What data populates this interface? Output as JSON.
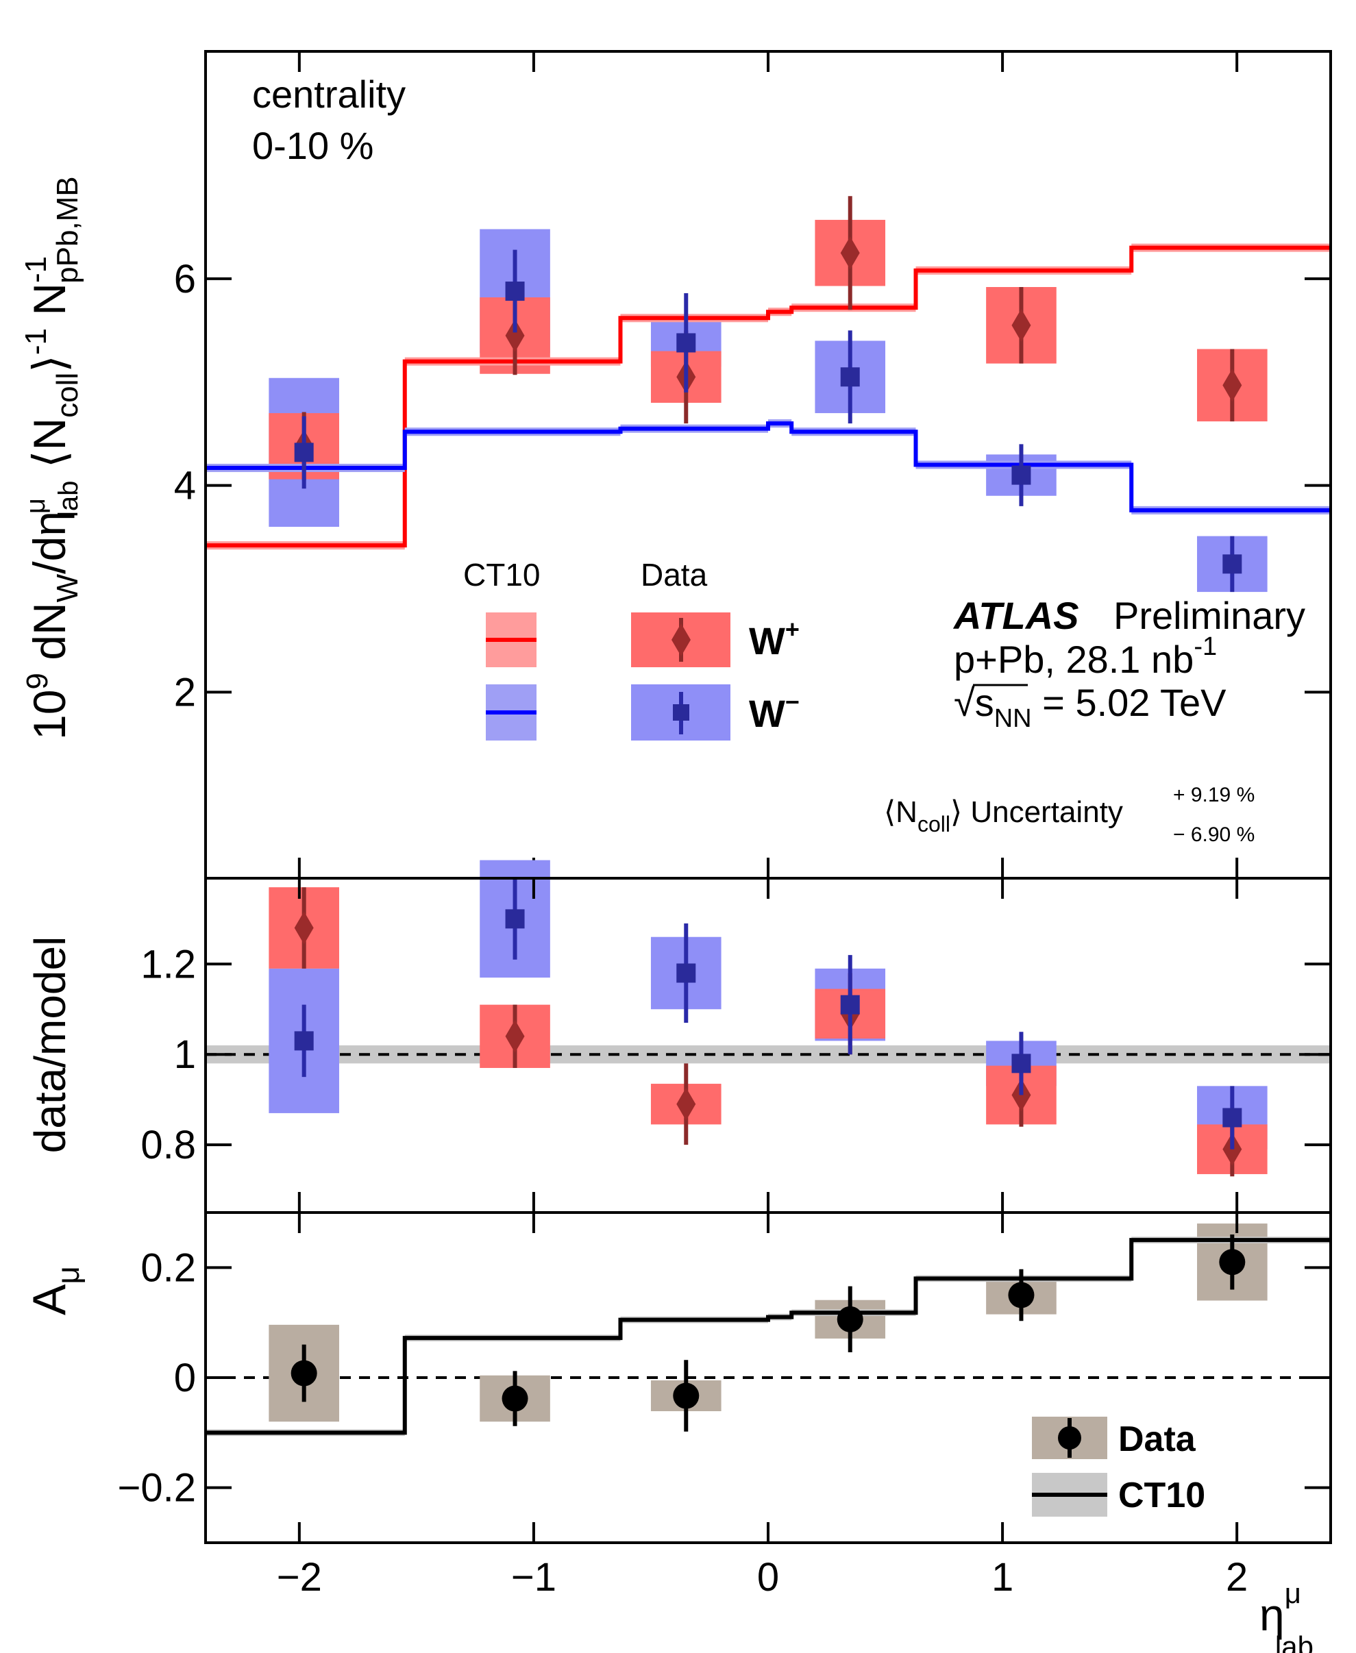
{
  "chart_data": [
    {
      "type": "scatter",
      "panel": "top",
      "ylabel_parts": {
        "lead": "10",
        "exp9": "9",
        "dN": " dN",
        "subW": "W",
        "slash": "/d",
        "eta": "η",
        "sup_mu": "μ",
        "sub_lab": "lab",
        "ncoll_open": " ⟨N",
        "sub_coll": "coll",
        "ncoll_close": "⟩",
        "sup_m1": "-1",
        "N": " N",
        "sup_m1b": "-1",
        "sub_ppbmb": "pPb,MB"
      },
      "yticks": [
        "2",
        "4",
        "6"
      ],
      "ytick_values": [
        2,
        4,
        6
      ],
      "ylim": [
        0.2,
        8.2
      ],
      "annotations": {
        "centrality": "centrality",
        "centrality_range": "0-10 %",
        "atlas": "ATLAS",
        "preliminary": "Preliminary",
        "system": "p+Pb, 28.1 nb",
        "system_sup": "-1",
        "energy_sqrt": "√",
        "energy_s": "s",
        "energy_sub": "NN",
        "energy_val": " = 5.02 TeV",
        "ncoll_unc_open": "⟨N",
        "ncoll_unc_sub": "coll",
        "ncoll_unc_close": "⟩ Uncertainty",
        "ncoll_unc_plus": "+ 9.19 %",
        "ncoll_unc_minus": "− 6.90 %"
      },
      "legend": {
        "ct10_header": "CT10",
        "data_header": "Data",
        "wplus": "W",
        "wplus_sup": "+",
        "wminus": "W",
        "wminus_sup": "−"
      },
      "model_bin_edges": [
        -2.4,
        -1.55,
        -0.63,
        0.0,
        0.1,
        0.63,
        1.55,
        2.4
      ],
      "series": [
        {
          "name": "W+",
          "color": "#ff0000",
          "band_color": "#ff6b6b",
          "x": [
            -1.98,
            -1.08,
            -0.35,
            0.35,
            1.08,
            1.98
          ],
          "y": [
            4.38,
            5.45,
            5.05,
            6.25,
            5.55,
            4.97
          ],
          "stat_err": [
            0.33,
            0.38,
            0.45,
            0.55,
            0.37,
            0.35
          ],
          "syst_err": [
            0.32,
            0.37,
            0.25,
            0.32,
            0.37,
            0.35
          ],
          "syst_halfwidth": 0.15,
          "model": [
            3.42,
            5.2,
            5.62,
            5.68,
            5.72,
            6.08,
            6.3
          ],
          "model_err": 0.04
        },
        {
          "name": "W−",
          "color": "#0000ff",
          "band_color": "#8f8ff7",
          "x": [
            -1.98,
            -1.08,
            -0.35,
            0.35,
            1.08,
            1.98
          ],
          "y": [
            4.32,
            5.88,
            5.38,
            5.05,
            4.1,
            3.24
          ],
          "stat_err": [
            0.35,
            0.4,
            0.48,
            0.45,
            0.3,
            0.27
          ],
          "syst_err": [
            0.72,
            0.6,
            0.23,
            0.35,
            0.2,
            0.27
          ],
          "syst_halfwidth": 0.15,
          "model": [
            4.17,
            4.52,
            4.55,
            4.6,
            4.52,
            4.2,
            3.76
          ],
          "model_err": 0.04
        }
      ]
    },
    {
      "type": "scatter",
      "panel": "middle",
      "ylabel": "data/model",
      "yticks": [
        "0.8",
        "1",
        "1.2"
      ],
      "ytick_values": [
        0.8,
        1.0,
        1.2
      ],
      "ylim": [
        0.65,
        1.39
      ],
      "reference_line": 1.0,
      "reference_band": 0.02,
      "series": [
        {
          "name": "W+",
          "x": [
            -1.98,
            -1.08,
            -0.35,
            0.35,
            1.08,
            1.98
          ],
          "y": [
            1.28,
            1.04,
            0.89,
            1.09,
            0.91,
            0.79
          ],
          "stat_err": [
            0.09,
            0.07,
            0.09,
            0.09,
            0.07,
            0.06
          ],
          "syst_err": [
            0.09,
            0.07,
            0.045,
            0.055,
            0.065,
            0.055
          ],
          "syst_halfwidth": 0.15
        },
        {
          "name": "W−",
          "x": [
            -1.98,
            -1.08,
            -0.35,
            0.35,
            1.08,
            1.98
          ],
          "y": [
            1.03,
            1.3,
            1.18,
            1.11,
            0.98,
            0.86
          ],
          "stat_err": [
            0.08,
            0.09,
            0.11,
            0.11,
            0.07,
            0.07
          ],
          "syst_err": [
            0.16,
            0.13,
            0.08,
            0.08,
            0.05,
            0.07
          ],
          "syst_halfwidth": 0.15
        }
      ]
    },
    {
      "type": "scatter",
      "panel": "bottom",
      "ylabel": "A",
      "ylabel_sub": "μ",
      "yticks": [
        "−0.2",
        "0",
        "0.2"
      ],
      "ytick_values": [
        -0.2,
        0.0,
        0.2
      ],
      "ylim": [
        -0.3,
        0.3
      ],
      "xlabel": "η",
      "xlabel_sup": "μ",
      "xlabel_sub": "lab",
      "xticks": [
        "−2",
        "−1",
        "0",
        "1",
        "2"
      ],
      "xtick_values": [
        -2,
        -1,
        0,
        1,
        2
      ],
      "xlim": [
        -2.4,
        2.4
      ],
      "reference_line": 0.0,
      "legend": {
        "data": "Data",
        "model": "CT10"
      },
      "series": [
        {
          "name": "Data",
          "x": [
            -1.98,
            -1.08,
            -0.35,
            0.35,
            1.08,
            1.98
          ],
          "y": [
            0.008,
            -0.038,
            -0.033,
            0.106,
            0.15,
            0.21
          ],
          "stat_err": [
            0.052,
            0.05,
            0.065,
            0.06,
            0.047,
            0.05
          ],
          "syst_err": [
            0.088,
            0.042,
            0.028,
            0.035,
            0.035,
            0.07
          ],
          "syst_halfwidth": 0.15,
          "marker_color": "#000000",
          "band_color": "#b9ada1"
        },
        {
          "name": "CT10",
          "model_bin_edges": [
            -2.4,
            -1.55,
            -0.63,
            0.0,
            0.1,
            0.63,
            1.55,
            2.4
          ],
          "model": [
            -0.1,
            0.072,
            0.105,
            0.11,
            0.118,
            0.18,
            0.25
          ],
          "color": "#000000",
          "band_color": "#c8c8c8"
        }
      ]
    }
  ]
}
